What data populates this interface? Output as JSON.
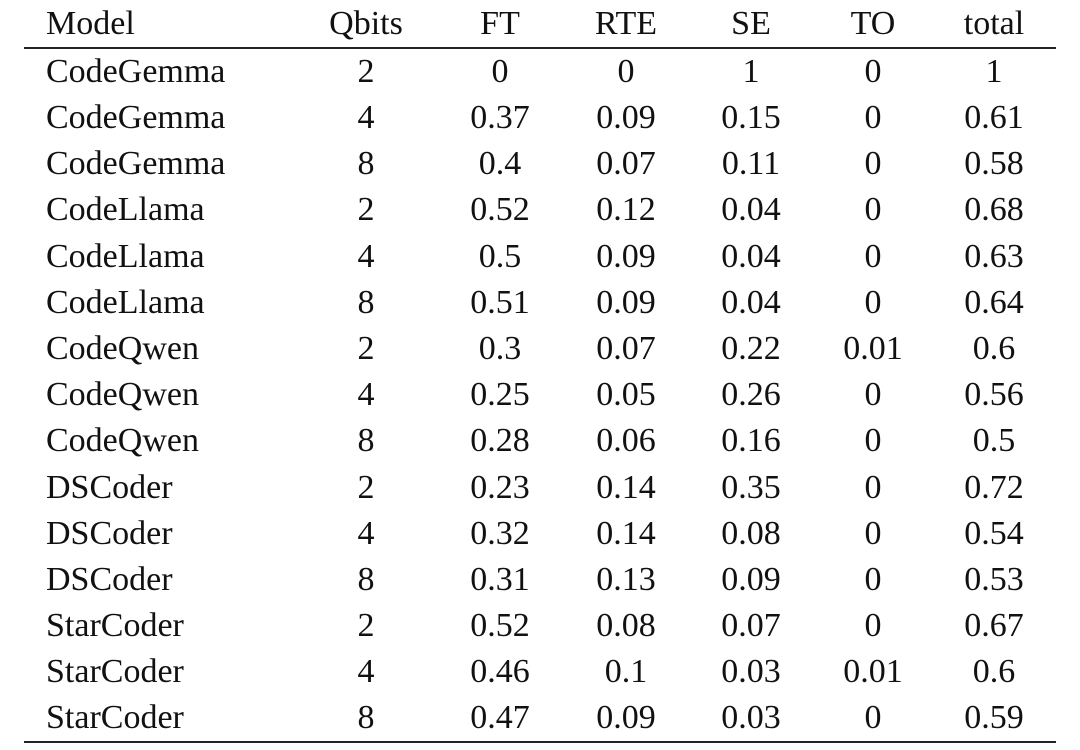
{
  "table": {
    "headers": [
      "Model",
      "Qbits",
      "FT",
      "RTE",
      "SE",
      "TO",
      "total"
    ],
    "rows": [
      [
        "CodeGemma",
        "2",
        "0",
        "0",
        "1",
        "0",
        "1"
      ],
      [
        "CodeGemma",
        "4",
        "0.37",
        "0.09",
        "0.15",
        "0",
        "0.61"
      ],
      [
        "CodeGemma",
        "8",
        "0.4",
        "0.07",
        "0.11",
        "0",
        "0.58"
      ],
      [
        "CodeLlama",
        "2",
        "0.52",
        "0.12",
        "0.04",
        "0",
        "0.68"
      ],
      [
        "CodeLlama",
        "4",
        "0.5",
        "0.09",
        "0.04",
        "0",
        "0.63"
      ],
      [
        "CodeLlama",
        "8",
        "0.51",
        "0.09",
        "0.04",
        "0",
        "0.64"
      ],
      [
        "CodeQwen",
        "2",
        "0.3",
        "0.07",
        "0.22",
        "0.01",
        "0.6"
      ],
      [
        "CodeQwen",
        "4",
        "0.25",
        "0.05",
        "0.26",
        "0",
        "0.56"
      ],
      [
        "CodeQwen",
        "8",
        "0.28",
        "0.06",
        "0.16",
        "0",
        "0.5"
      ],
      [
        "DSCoder",
        "2",
        "0.23",
        "0.14",
        "0.35",
        "0",
        "0.72"
      ],
      [
        "DSCoder",
        "4",
        "0.32",
        "0.14",
        "0.08",
        "0",
        "0.54"
      ],
      [
        "DSCoder",
        "8",
        "0.31",
        "0.13",
        "0.09",
        "0",
        "0.53"
      ],
      [
        "StarCoder",
        "2",
        "0.52",
        "0.08",
        "0.07",
        "0",
        "0.67"
      ],
      [
        "StarCoder",
        "4",
        "0.46",
        "0.1",
        "0.03",
        "0.01",
        "0.6"
      ],
      [
        "StarCoder",
        "8",
        "0.47",
        "0.09",
        "0.03",
        "0",
        "0.59"
      ]
    ]
  }
}
